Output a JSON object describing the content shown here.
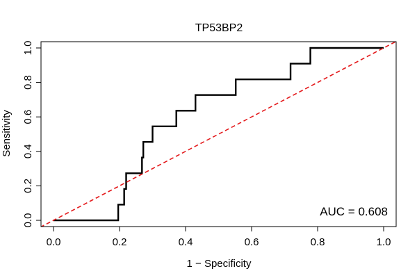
{
  "chart_data": {
    "type": "line",
    "title": "TP53BP2",
    "xlabel": "1 − Specificity",
    "ylabel": "Sensitivity",
    "xlim": [
      0,
      1
    ],
    "ylim": [
      0,
      1
    ],
    "x_ticks": [
      0.0,
      0.2,
      0.4,
      0.6,
      0.8,
      1.0
    ],
    "x_tick_labels": [
      "0.0",
      "0.2",
      "0.4",
      "0.6",
      "0.8",
      "1.0"
    ],
    "y_ticks": [
      0.0,
      0.2,
      0.4,
      0.6,
      0.8,
      1.0
    ],
    "y_tick_labels": [
      "0.0",
      "0.2",
      "0.4",
      "0.6",
      "0.8",
      "1.0"
    ],
    "grid": false,
    "annotation": "AUC = 0.608",
    "series": [
      {
        "name": "ROC curve",
        "color": "#000000",
        "style": "step",
        "x": [
          0.0,
          0.196,
          0.196,
          0.214,
          0.214,
          0.22,
          0.22,
          0.268,
          0.268,
          0.272,
          0.272,
          0.3,
          0.3,
          0.372,
          0.372,
          0.43,
          0.43,
          0.552,
          0.552,
          0.718,
          0.718,
          0.778,
          0.778,
          1.0
        ],
        "y": [
          0.0,
          0.0,
          0.091,
          0.091,
          0.182,
          0.182,
          0.273,
          0.273,
          0.364,
          0.364,
          0.455,
          0.455,
          0.545,
          0.545,
          0.636,
          0.636,
          0.727,
          0.727,
          0.818,
          0.818,
          0.909,
          0.909,
          1.0,
          1.0
        ]
      },
      {
        "name": "chance line",
        "color": "#e41a1c",
        "style": "dashed",
        "x": [
          -0.04,
          1.04
        ],
        "y": [
          -0.04,
          1.04
        ]
      }
    ]
  }
}
